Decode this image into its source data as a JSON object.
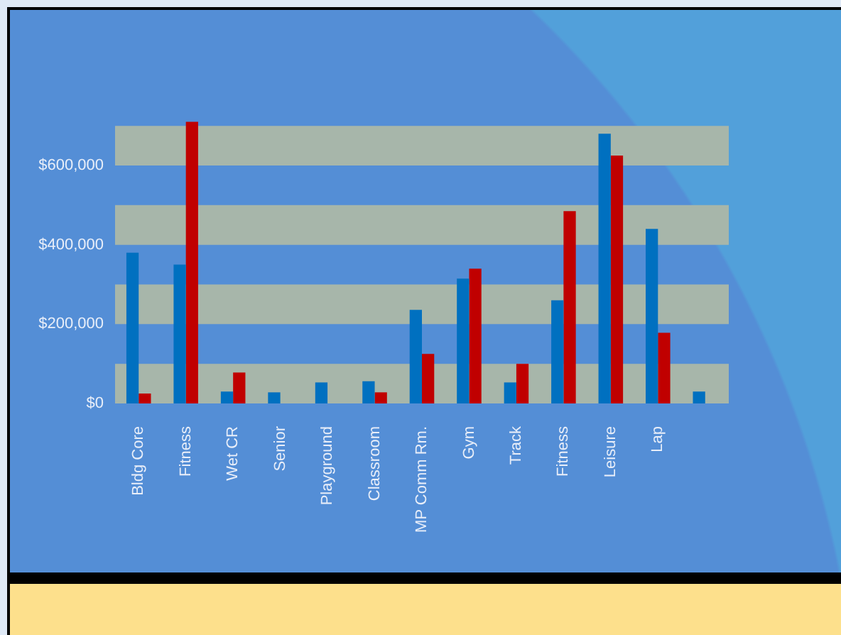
{
  "chart_data": {
    "type": "bar",
    "categories": [
      "Bldg Core",
      "Fitness",
      "Wet CR",
      "Senior",
      "Playground",
      "Classroom",
      "MP Comm Rm.",
      "Gym",
      "Track",
      "Fitness",
      "Leisure",
      "Lap",
      null
    ],
    "series": [
      {
        "color": "#0070c0",
        "values": [
          380000,
          350000,
          30000,
          28000,
          53000,
          56000,
          236000,
          315000,
          53000,
          260000,
          680000,
          440000,
          30000
        ]
      },
      {
        "color": "#c00000",
        "values": [
          25000,
          710000,
          78000,
          null,
          null,
          28000,
          125000,
          340000,
          100000,
          485000,
          625000,
          178000,
          null
        ]
      }
    ],
    "ylim": [
      0,
      720000
    ],
    "yticks": [
      {
        "value": 0,
        "label": "$0"
      },
      {
        "value": 200000,
        "label": "$200,000"
      },
      {
        "value": 400000,
        "label": "$400,000"
      },
      {
        "value": 600000,
        "label": "$600,000"
      }
    ],
    "bands": [
      {
        "axis": "y",
        "from": 0,
        "to": 100000,
        "color": "#a7b6aa"
      },
      {
        "axis": "y",
        "from": 200000,
        "to": 300000,
        "color": "#a7b6aa"
      },
      {
        "axis": "y",
        "from": 400000,
        "to": 500000,
        "color": "#a7b6aa"
      },
      {
        "axis": "y",
        "from": 600000,
        "to": 700000,
        "color": "#a7b6aa"
      }
    ]
  }
}
